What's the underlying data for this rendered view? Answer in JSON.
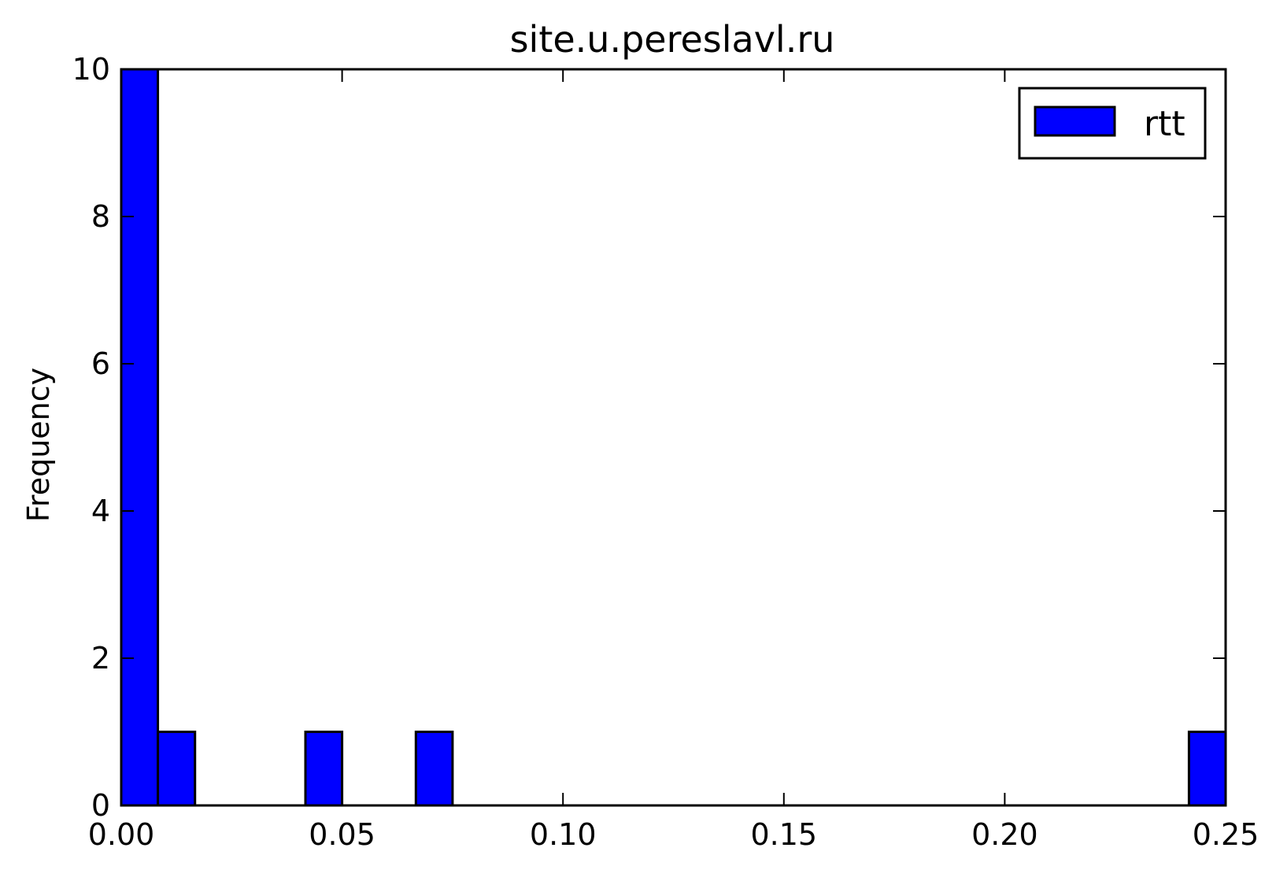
{
  "chart_data": {
    "type": "bar",
    "title": "site.u.pereslavl.ru",
    "xlabel": "",
    "ylabel": "Frequency",
    "xlim": [
      0.0,
      0.25
    ],
    "ylim": [
      0,
      10
    ],
    "xticks": [
      "0.00",
      "0.05",
      "0.10",
      "0.15",
      "0.20",
      "0.25"
    ],
    "yticks": [
      "0",
      "2",
      "4",
      "6",
      "8",
      "10"
    ],
    "grid": false,
    "legend_position": "top-right",
    "series": [
      {
        "name": "rtt",
        "color": "#0000ff",
        "bins": [
          {
            "x0": 0.0,
            "x1": 0.0083,
            "value": 10
          },
          {
            "x0": 0.0083,
            "x1": 0.0167,
            "value": 1
          },
          {
            "x0": 0.0417,
            "x1": 0.05,
            "value": 1
          },
          {
            "x0": 0.0667,
            "x1": 0.075,
            "value": 1
          },
          {
            "x0": 0.2417,
            "x1": 0.25,
            "value": 1
          }
        ]
      }
    ]
  }
}
